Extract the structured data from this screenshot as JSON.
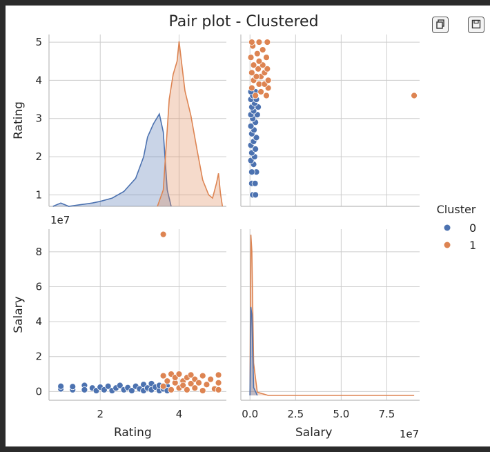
{
  "toolbar": {
    "copy_icon": "copy-icon",
    "save_icon": "save-icon"
  },
  "chart_data": {
    "type": "scatter",
    "title": "Pair plot - Clustered",
    "variables": [
      "Rating",
      "Salary"
    ],
    "axis_labels": {
      "rating": "Rating",
      "salary": "Salary"
    },
    "offset_label": "1e7",
    "grid": true,
    "legend": {
      "title": "Cluster",
      "placement": "right",
      "entries": [
        {
          "label": "0",
          "color": "#4c72b0"
        },
        {
          "label": "1",
          "color": "#dd8452"
        }
      ]
    },
    "axes": {
      "rating": {
        "range": [
          0.7,
          5.2
        ],
        "ticks": [
          1,
          2,
          3,
          4,
          5
        ],
        "bottom_ticks": [
          2,
          4
        ]
      },
      "salary": {
        "range": [
          -0.5,
          9.3
        ],
        "ticks": [
          0,
          2,
          4,
          6,
          8
        ],
        "bottom_ticks": [
          0.0,
          2.5,
          5.0,
          7.5
        ],
        "bottom_tick_labels": [
          "0.0",
          "2.5",
          "5.0",
          "7.5"
        ]
      }
    },
    "series": [
      {
        "name": "0",
        "color": "#4c72b0",
        "points": [
          [
            1.0,
            0.15
          ],
          [
            1.0,
            0.3
          ],
          [
            1.3,
            0.1
          ],
          [
            1.3,
            0.28
          ],
          [
            1.6,
            0.35
          ],
          [
            1.6,
            0.1
          ],
          [
            1.8,
            0.2
          ],
          [
            1.9,
            0.05
          ],
          [
            2.0,
            0.25
          ],
          [
            2.1,
            0.1
          ],
          [
            2.2,
            0.3
          ],
          [
            2.3,
            0.05
          ],
          [
            2.4,
            0.2
          ],
          [
            2.5,
            0.35
          ],
          [
            2.6,
            0.1
          ],
          [
            2.7,
            0.22
          ],
          [
            2.8,
            0.05
          ],
          [
            2.9,
            0.3
          ],
          [
            3.0,
            0.15
          ],
          [
            3.1,
            0.05
          ],
          [
            3.1,
            0.4
          ],
          [
            3.2,
            0.2
          ],
          [
            3.3,
            0.1
          ],
          [
            3.3,
            0.45
          ],
          [
            3.4,
            0.25
          ],
          [
            3.5,
            0.05
          ],
          [
            3.5,
            0.35
          ],
          [
            3.6,
            0.15
          ],
          [
            3.7,
            0.3
          ],
          [
            3.7,
            0.05
          ]
        ],
        "rating_density": [
          [
            0.8,
            0.0
          ],
          [
            1.0,
            0.02
          ],
          [
            1.2,
            0.0
          ],
          [
            1.5,
            0.01
          ],
          [
            1.8,
            0.02
          ],
          [
            2.0,
            0.03
          ],
          [
            2.3,
            0.05
          ],
          [
            2.6,
            0.09
          ],
          [
            2.9,
            0.17
          ],
          [
            3.1,
            0.3
          ],
          [
            3.2,
            0.42
          ],
          [
            3.35,
            0.5
          ],
          [
            3.5,
            0.56
          ],
          [
            3.6,
            0.45
          ],
          [
            3.7,
            0.1
          ],
          [
            3.8,
            0.0
          ]
        ],
        "salary_density": [
          [
            0.0,
            0.0
          ],
          [
            0.05,
            0.55
          ],
          [
            0.1,
            0.5
          ],
          [
            0.2,
            0.05
          ],
          [
            0.4,
            0.0
          ]
        ]
      },
      {
        "name": "1",
        "color": "#dd8452",
        "points": [
          [
            3.6,
            0.3
          ],
          [
            3.6,
            0.9
          ],
          [
            3.7,
            0.6
          ],
          [
            3.8,
            1.0
          ],
          [
            3.8,
            0.1
          ],
          [
            3.9,
            0.5
          ],
          [
            3.9,
            0.8
          ],
          [
            4.0,
            0.2
          ],
          [
            4.0,
            1.0
          ],
          [
            4.1,
            0.6
          ],
          [
            4.1,
            0.35
          ],
          [
            4.2,
            0.8
          ],
          [
            4.2,
            0.1
          ],
          [
            4.3,
            0.45
          ],
          [
            4.3,
            0.95
          ],
          [
            4.4,
            0.2
          ],
          [
            4.4,
            0.7
          ],
          [
            4.5,
            0.5
          ],
          [
            4.6,
            0.05
          ],
          [
            4.6,
            0.9
          ],
          [
            4.7,
            0.4
          ],
          [
            4.8,
            0.7
          ],
          [
            4.9,
            0.15
          ],
          [
            5.0,
            0.95
          ],
          [
            5.0,
            0.5
          ],
          [
            5.0,
            0.1
          ],
          [
            3.6,
            9.0
          ]
        ],
        "rating_density": [
          [
            3.45,
            0.0
          ],
          [
            3.6,
            0.1
          ],
          [
            3.75,
            0.65
          ],
          [
            3.85,
            0.8
          ],
          [
            3.95,
            0.88
          ],
          [
            4.0,
            1.0
          ],
          [
            4.05,
            0.9
          ],
          [
            4.15,
            0.7
          ],
          [
            4.3,
            0.55
          ],
          [
            4.45,
            0.35
          ],
          [
            4.6,
            0.16
          ],
          [
            4.75,
            0.07
          ],
          [
            4.85,
            0.05
          ],
          [
            4.95,
            0.14
          ],
          [
            5.0,
            0.2
          ],
          [
            5.05,
            0.08
          ],
          [
            5.1,
            0.0
          ]
        ],
        "salary_density": [
          [
            0.0,
            0.0
          ],
          [
            0.05,
            1.0
          ],
          [
            0.1,
            0.9
          ],
          [
            0.2,
            0.2
          ],
          [
            0.4,
            0.02
          ],
          [
            1.0,
            0.0
          ],
          [
            9.0,
            0.0
          ]
        ]
      }
    ]
  }
}
